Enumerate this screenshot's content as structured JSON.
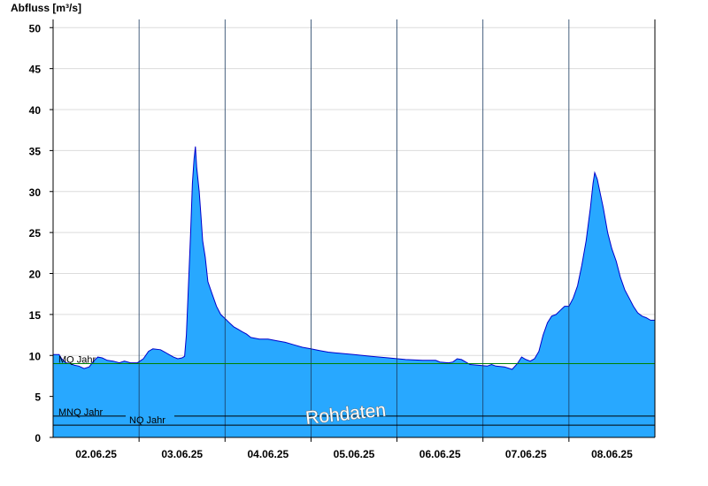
{
  "chart_data": {
    "type": "area",
    "ylabel": "Abfluss [m³/s]",
    "ylim": [
      0,
      51
    ],
    "yticks": [
      0,
      5,
      10,
      15,
      20,
      25,
      30,
      35,
      40,
      45,
      50
    ],
    "xlim_days": [
      1.5,
      8.5
    ],
    "x_tick_labels": [
      {
        "day": 2,
        "label": "02.06.25"
      },
      {
        "day": 3,
        "label": "03.06.25"
      },
      {
        "day": 4,
        "label": "04.06.25"
      },
      {
        "day": 5,
        "label": "05.06.25"
      },
      {
        "day": 6,
        "label": "06.06.25"
      },
      {
        "day": 7,
        "label": "07.06.25"
      },
      {
        "day": 8,
        "label": "08.06.25"
      }
    ],
    "points": [
      [
        1.5,
        10.1
      ],
      [
        1.57,
        10.1
      ],
      [
        1.6,
        9.6
      ],
      [
        1.65,
        9.1
      ],
      [
        1.7,
        9.0
      ],
      [
        1.75,
        8.8
      ],
      [
        1.8,
        8.7
      ],
      [
        1.86,
        8.4
      ],
      [
        1.92,
        8.6
      ],
      [
        1.97,
        9.3
      ],
      [
        2.02,
        9.8
      ],
      [
        2.07,
        9.7
      ],
      [
        2.13,
        9.4
      ],
      [
        2.2,
        9.3
      ],
      [
        2.27,
        9.1
      ],
      [
        2.33,
        9.3
      ],
      [
        2.4,
        9.1
      ],
      [
        2.48,
        9.1
      ],
      [
        2.55,
        9.6
      ],
      [
        2.61,
        10.5
      ],
      [
        2.66,
        10.8
      ],
      [
        2.75,
        10.7
      ],
      [
        2.8,
        10.4
      ],
      [
        2.85,
        10.1
      ],
      [
        2.9,
        9.8
      ],
      [
        2.95,
        9.6
      ],
      [
        3.0,
        9.7
      ],
      [
        3.03,
        9.9
      ],
      [
        3.05,
        12.5
      ],
      [
        3.08,
        20.0
      ],
      [
        3.1,
        25.0
      ],
      [
        3.12,
        31.0
      ],
      [
        3.14,
        34.0
      ],
      [
        3.155,
        35.5
      ],
      [
        3.17,
        33.0
      ],
      [
        3.2,
        30.0
      ],
      [
        3.22,
        27.0
      ],
      [
        3.24,
        24.0
      ],
      [
        3.27,
        22.0
      ],
      [
        3.3,
        19.0
      ],
      [
        3.35,
        17.5
      ],
      [
        3.4,
        16.0
      ],
      [
        3.45,
        15.0
      ],
      [
        3.5,
        14.5
      ],
      [
        3.55,
        14.0
      ],
      [
        3.6,
        13.5
      ],
      [
        3.65,
        13.2
      ],
      [
        3.7,
        12.9
      ],
      [
        3.75,
        12.6
      ],
      [
        3.8,
        12.2
      ],
      [
        3.9,
        12.0
      ],
      [
        4.0,
        12.0
      ],
      [
        4.1,
        11.8
      ],
      [
        4.2,
        11.6
      ],
      [
        4.3,
        11.3
      ],
      [
        4.4,
        11.0
      ],
      [
        4.5,
        10.8
      ],
      [
        4.6,
        10.6
      ],
      [
        4.7,
        10.4
      ],
      [
        4.8,
        10.3
      ],
      [
        5.0,
        10.1
      ],
      [
        5.2,
        9.9
      ],
      [
        5.4,
        9.7
      ],
      [
        5.6,
        9.5
      ],
      [
        5.8,
        9.4
      ],
      [
        5.95,
        9.4
      ],
      [
        6.0,
        9.2
      ],
      [
        6.1,
        9.1
      ],
      [
        6.15,
        9.2
      ],
      [
        6.2,
        9.6
      ],
      [
        6.25,
        9.5
      ],
      [
        6.3,
        9.2
      ],
      [
        6.35,
        8.9
      ],
      [
        6.45,
        8.8
      ],
      [
        6.55,
        8.7
      ],
      [
        6.6,
        8.9
      ],
      [
        6.65,
        8.7
      ],
      [
        6.75,
        8.6
      ],
      [
        6.84,
        8.3
      ],
      [
        6.9,
        9.0
      ],
      [
        6.95,
        9.8
      ],
      [
        7.0,
        9.5
      ],
      [
        7.05,
        9.3
      ],
      [
        7.1,
        9.6
      ],
      [
        7.15,
        10.5
      ],
      [
        7.2,
        12.5
      ],
      [
        7.25,
        14.0
      ],
      [
        7.3,
        14.8
      ],
      [
        7.35,
        15.0
      ],
      [
        7.4,
        15.5
      ],
      [
        7.45,
        16.0
      ],
      [
        7.5,
        16.0
      ],
      [
        7.55,
        17.0
      ],
      [
        7.6,
        18.5
      ],
      [
        7.65,
        21.0
      ],
      [
        7.7,
        24.0
      ],
      [
        7.75,
        28.0
      ],
      [
        7.78,
        31.0
      ],
      [
        7.8,
        32.3
      ],
      [
        7.83,
        31.5
      ],
      [
        7.86,
        30.0
      ],
      [
        7.9,
        28.0
      ],
      [
        7.95,
        25.0
      ],
      [
        8.0,
        23.0
      ],
      [
        8.05,
        21.5
      ],
      [
        8.1,
        19.5
      ],
      [
        8.15,
        18.0
      ],
      [
        8.2,
        17.0
      ],
      [
        8.25,
        16.0
      ],
      [
        8.3,
        15.2
      ],
      [
        8.35,
        14.8
      ],
      [
        8.4,
        14.6
      ],
      [
        8.45,
        14.3
      ],
      [
        8.5,
        14.3
      ]
    ],
    "reference_lines": [
      {
        "label": "MQ Jahr",
        "value": 9.0,
        "color": "#008000"
      },
      {
        "label": "MNQ Jahr",
        "value": 2.6,
        "color": "#000000"
      },
      {
        "label": "NQ Jahr",
        "value": 1.5,
        "color": "#000000"
      }
    ],
    "colors": {
      "fill": "#28a8ff",
      "line": "#0000cc",
      "grid": "#dcdcdc",
      "axis": "#000000"
    },
    "grid": true,
    "annotation": "Rohdaten"
  }
}
